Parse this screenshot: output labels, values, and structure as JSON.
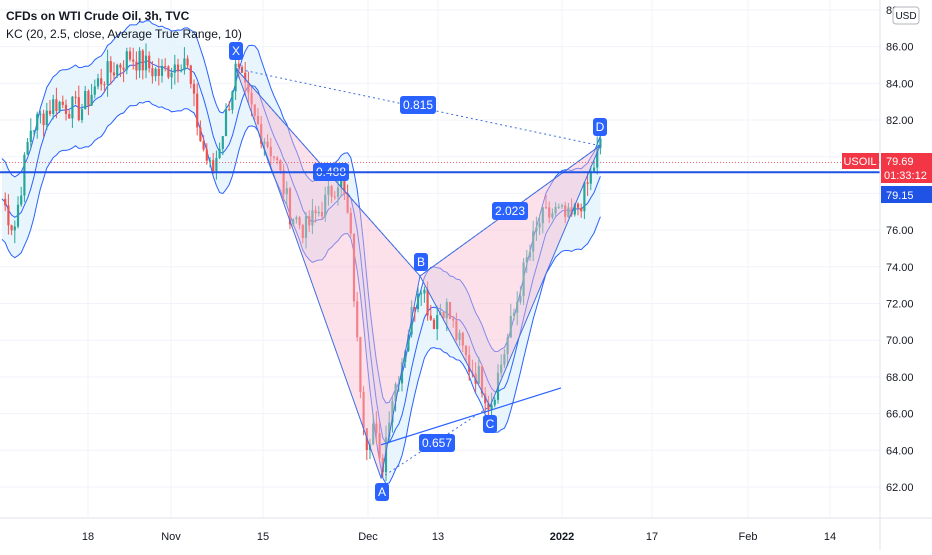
{
  "header": {
    "title": "CFDs on WTI Crude Oil, 3h, TVC",
    "indicator": "KC (20, 2.5, close, Average True Range, 10)",
    "currency_button": "USD"
  },
  "price_tags": {
    "symbol": "USOIL",
    "last_price": "79.69",
    "countdown": "01:33:12",
    "line_price": "79.15"
  },
  "colors": {
    "candle_up": "#26a69a",
    "candle_down": "#ef5350",
    "channel": "#2962ff",
    "channel_fill": "#e3f2fd",
    "pattern_fill": "#f8bbd0",
    "pattern_line": "#3f6fe0",
    "label_bg": "#2962ff",
    "horizontal_line": "#1e53e5",
    "price_tag": "#f23645"
  },
  "chart_data": {
    "type": "candlestick",
    "y_axis": {
      "ticks": [
        62,
        64,
        66,
        68,
        70,
        72,
        74,
        76,
        78,
        80,
        82,
        84,
        86,
        88
      ],
      "tick_labels": [
        "62.00",
        "64.00",
        "66.00",
        "68.00",
        "70.00",
        "72.00",
        "74.00",
        "76.00",
        "78.00",
        "80.00",
        "82.00",
        "84.00",
        "86.00",
        "88.00"
      ],
      "range": [
        60.5,
        88.3
      ]
    },
    "x_axis": {
      "tick_labels": [
        "18",
        "Nov",
        "15",
        "Dec",
        "13",
        "2022",
        "17",
        "Feb",
        "14"
      ],
      "bold_labels": [
        "2022"
      ]
    },
    "harmonic_pattern": {
      "points": [
        {
          "label": "X",
          "price": 84.8
        },
        {
          "label": "A",
          "price": 62.5
        },
        {
          "label": "B",
          "price": 73.5
        },
        {
          "label": "C",
          "price": 66.4
        },
        {
          "label": "D",
          "price": 80.6
        }
      ],
      "ratios": [
        {
          "leg": "XA-B",
          "value": "0.488"
        },
        {
          "leg": "XA-D",
          "value": "0.815"
        },
        {
          "leg": "BC-D",
          "value": "2.023"
        },
        {
          "leg": "AB-C",
          "value": "0.657"
        }
      ]
    },
    "horizontal_line": 79.15,
    "last_price": 79.69
  }
}
